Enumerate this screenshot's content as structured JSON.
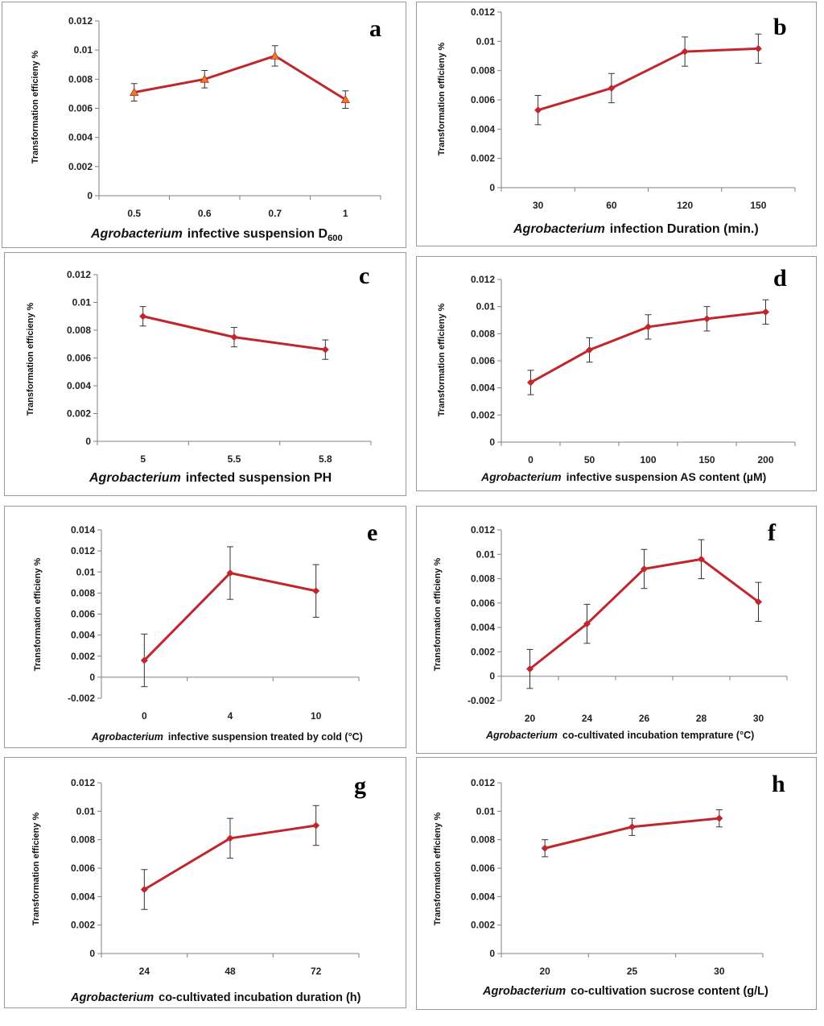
{
  "colors": {
    "line": "#c0272d",
    "marker_triangle": "#e67e22",
    "axis": "#808080",
    "error": "#333333"
  },
  "chart_data": [
    {
      "id": "a",
      "type": "line",
      "letter": "a",
      "ylabel": "Transformation efficieny %",
      "xlabel_italic": "Agrobacterium",
      "xlabel_rest": "infective suspension D",
      "xlabel_sub": "600",
      "categories": [
        "0.5",
        "0.6",
        "0.7",
        "1"
      ],
      "values": [
        0.0071,
        0.008,
        0.0096,
        0.0066
      ],
      "errors": [
        0.0006,
        0.0006,
        0.0007,
        0.0006
      ],
      "yticks": [
        "0",
        "0.002",
        "0.004",
        "0.006",
        "0.008",
        "0.01",
        "0.012"
      ],
      "ylim": [
        0,
        0.012
      ],
      "marker": "triangle"
    },
    {
      "id": "b",
      "type": "line",
      "letter": "b",
      "ylabel": "Transformation efficieny %",
      "xlabel_italic": "Agrobacterium",
      "xlabel_rest": "infection Duration (min.)",
      "categories": [
        "30",
        "60",
        "120",
        "150"
      ],
      "values": [
        0.0053,
        0.0068,
        0.0093,
        0.0095
      ],
      "errors": [
        0.001,
        0.001,
        0.001,
        0.001
      ],
      "yticks": [
        "0",
        "0.002",
        "0.004",
        "0.006",
        "0.008",
        "0.01",
        "0.012"
      ],
      "ylim": [
        0,
        0.012
      ],
      "marker": "diamond"
    },
    {
      "id": "c",
      "type": "line",
      "letter": "c",
      "ylabel": "Transformation efficieny %",
      "xlabel_italic": "Agrobacterium",
      "xlabel_rest": "infected suspension PH",
      "categories": [
        "5",
        "5.5",
        "5.8"
      ],
      "values": [
        0.009,
        0.0075,
        0.0066
      ],
      "errors": [
        0.0007,
        0.0007,
        0.0007
      ],
      "yticks": [
        "0",
        "0.002",
        "0.004",
        "0.006",
        "0.008",
        "0.01",
        "0.012"
      ],
      "ylim": [
        0,
        0.012
      ],
      "marker": "diamond"
    },
    {
      "id": "d",
      "type": "line",
      "letter": "d",
      "ylabel": "Transformation efficieny %",
      "xlabel_italic": "Agrobacterium",
      "xlabel_rest": "infective suspension AS content (µM)",
      "categories": [
        "0",
        "50",
        "100",
        "150",
        "200"
      ],
      "values": [
        0.0044,
        0.0068,
        0.0085,
        0.0091,
        0.0096
      ],
      "errors": [
        0.0009,
        0.0009,
        0.0009,
        0.0009,
        0.0009
      ],
      "yticks": [
        "0",
        "0.002",
        "0.004",
        "0.006",
        "0.008",
        "0.01",
        "0.012"
      ],
      "ylim": [
        0,
        0.012
      ],
      "marker": "diamond"
    },
    {
      "id": "e",
      "type": "line",
      "letter": "e",
      "ylabel": "Transformation efficieny %",
      "xlabel_italic": "Agrobacterium",
      "xlabel_rest": "infective suspension treated by cold (°C)",
      "categories": [
        "0",
        "4",
        "10"
      ],
      "values": [
        0.0016,
        0.0099,
        0.0082
      ],
      "errors": [
        0.0025,
        0.0025,
        0.0025
      ],
      "yticks": [
        "-0.002",
        "0",
        "0.002",
        "0.004",
        "0.006",
        "0.008",
        "0.01",
        "0.012",
        "0.014"
      ],
      "ylim": [
        -0.002,
        0.014
      ],
      "marker": "diamond"
    },
    {
      "id": "f",
      "type": "line",
      "letter": "f",
      "ylabel": "Transformation efficieny %",
      "xlabel_italic": "Agrobacterium",
      "xlabel_rest": "co-cultivated incubation temprature (°C)",
      "categories": [
        "20",
        "24",
        "26",
        "28",
        "30"
      ],
      "values": [
        0.0006,
        0.0043,
        0.0088,
        0.0096,
        0.0061
      ],
      "errors": [
        0.0016,
        0.0016,
        0.0016,
        0.0016,
        0.0016
      ],
      "yticks": [
        "-0.002",
        "0",
        "0.002",
        "0.004",
        "0.006",
        "0.008",
        "0.01",
        "0.012"
      ],
      "ylim": [
        -0.002,
        0.012
      ],
      "marker": "diamond"
    },
    {
      "id": "g",
      "type": "line",
      "letter": "g",
      "ylabel": "Transformation efficieny %",
      "xlabel_italic": "Agrobacterium",
      "xlabel_rest": "co-cultivated incubation duration (h)",
      "categories": [
        "24",
        "48",
        "72"
      ],
      "values": [
        0.0045,
        0.0081,
        0.009
      ],
      "errors": [
        0.0014,
        0.0014,
        0.0014
      ],
      "yticks": [
        "0",
        "0.002",
        "0.004",
        "0.006",
        "0.008",
        "0.01",
        "0.012"
      ],
      "ylim": [
        0,
        0.012
      ],
      "marker": "diamond"
    },
    {
      "id": "h",
      "type": "line",
      "letter": "h",
      "ylabel": "Transformation efficieny %",
      "xlabel_italic": "Agrobacterium",
      "xlabel_rest": "co-cultivation sucrose content (g/L)",
      "categories": [
        "20",
        "25",
        "30"
      ],
      "values": [
        0.0074,
        0.0089,
        0.0095
      ],
      "errors": [
        0.0006,
        0.0006,
        0.0006
      ],
      "yticks": [
        "0",
        "0.002",
        "0.004",
        "0.006",
        "0.008",
        "0.01",
        "0.012"
      ],
      "ylim": [
        0,
        0.012
      ],
      "marker": "diamond"
    }
  ]
}
